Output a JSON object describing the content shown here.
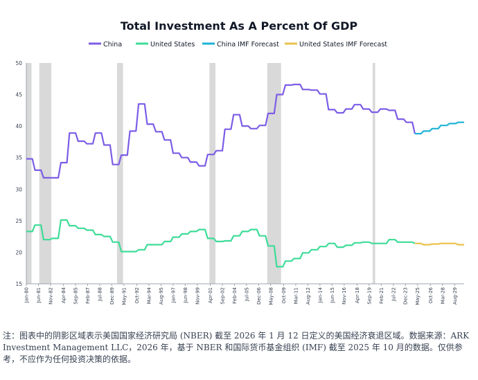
{
  "chart_data": {
    "type": "line",
    "title": "Total Investment As A Percent Of GDP",
    "xlabel": "",
    "ylabel": "",
    "ylim": [
      15,
      50
    ],
    "yticks": [
      15,
      20,
      25,
      30,
      35,
      40,
      45,
      50
    ],
    "xlim": [
      1980,
      2030.7
    ],
    "xticks": [
      {
        "label": "Jan-80",
        "x": 1980.0
      },
      {
        "label": "Jun-81",
        "x": 1981.4
      },
      {
        "label": "Nov-82",
        "x": 1982.8
      },
      {
        "label": "Apr-84",
        "x": 1984.3
      },
      {
        "label": "Sep-85",
        "x": 1985.7
      },
      {
        "label": "Feb-87",
        "x": 1987.1
      },
      {
        "label": "Jul-88",
        "x": 1988.5
      },
      {
        "label": "Dec-89",
        "x": 1989.9
      },
      {
        "label": "May-91",
        "x": 1991.3
      },
      {
        "label": "Oct-92",
        "x": 1992.8
      },
      {
        "label": "Mar-94",
        "x": 1994.2
      },
      {
        "label": "Aug-95",
        "x": 1995.6
      },
      {
        "label": "Jan-97",
        "x": 1997.0
      },
      {
        "label": "Jun-98",
        "x": 1998.4
      },
      {
        "label": "Nov-99",
        "x": 1999.8
      },
      {
        "label": "Apr-01",
        "x": 2001.3
      },
      {
        "label": "Sep-02",
        "x": 2002.7
      },
      {
        "label": "Feb-04",
        "x": 2004.1
      },
      {
        "label": "Jul-05",
        "x": 2005.5
      },
      {
        "label": "Dec-06",
        "x": 2006.9
      },
      {
        "label": "May-08",
        "x": 2008.3
      },
      {
        "label": "Oct-09",
        "x": 2009.8
      },
      {
        "label": "Mar-11",
        "x": 2011.2
      },
      {
        "label": "Aug-12",
        "x": 2012.6
      },
      {
        "label": "Jan-14",
        "x": 2014.0
      },
      {
        "label": "Jun-15",
        "x": 2015.4
      },
      {
        "label": "Nov-16",
        "x": 2016.8
      },
      {
        "label": "Apr-18",
        "x": 2018.3
      },
      {
        "label": "Sep-19",
        "x": 2019.7
      },
      {
        "label": "Feb-21",
        "x": 2021.1
      },
      {
        "label": "Jul-22",
        "x": 2022.5
      },
      {
        "label": "Dec-23",
        "x": 2023.9
      },
      {
        "label": "May-25",
        "x": 2025.3
      },
      {
        "label": "Oct-26",
        "x": 2026.8
      },
      {
        "label": "Mar-28",
        "x": 2028.2
      },
      {
        "label": "Aug-29",
        "x": 2029.6
      }
    ],
    "grid": false,
    "legend": "top",
    "recessions": [
      [
        1980.0,
        1980.6
      ],
      [
        1981.5,
        1982.9
      ],
      [
        1990.5,
        1991.2
      ],
      [
        2001.2,
        2001.9
      ],
      [
        2007.9,
        2009.5
      ],
      [
        2020.1,
        2020.4
      ]
    ],
    "series": [
      {
        "name": "China",
        "color": "#7c5ce6",
        "points": [
          [
            1980,
            34.8
          ],
          [
            1981,
            33.0
          ],
          [
            1982,
            31.8
          ],
          [
            1983,
            31.8
          ],
          [
            1984,
            34.2
          ],
          [
            1985,
            38.9
          ],
          [
            1986,
            37.6
          ],
          [
            1987,
            37.2
          ],
          [
            1988,
            38.9
          ],
          [
            1989,
            37.0
          ],
          [
            1990,
            33.9
          ],
          [
            1991,
            35.4
          ],
          [
            1992,
            39.2
          ],
          [
            1993,
            43.5
          ],
          [
            1994,
            40.3
          ],
          [
            1995,
            39.1
          ],
          [
            1996,
            37.8
          ],
          [
            1997,
            35.7
          ],
          [
            1998,
            35.0
          ],
          [
            1999,
            34.3
          ],
          [
            2000,
            33.7
          ],
          [
            2001,
            35.5
          ],
          [
            2002,
            36.1
          ],
          [
            2003,
            39.5
          ],
          [
            2004,
            41.8
          ],
          [
            2005,
            40.0
          ],
          [
            2006,
            39.6
          ],
          [
            2007,
            40.1
          ],
          [
            2008,
            42.0
          ],
          [
            2009,
            45.0
          ],
          [
            2010,
            46.5
          ],
          [
            2011,
            46.6
          ],
          [
            2012,
            45.8
          ],
          [
            2013,
            45.7
          ],
          [
            2014,
            45.1
          ],
          [
            2015,
            42.6
          ],
          [
            2016,
            42.1
          ],
          [
            2017,
            42.7
          ],
          [
            2018,
            43.4
          ],
          [
            2019,
            42.7
          ],
          [
            2020,
            42.2
          ],
          [
            2021,
            42.7
          ],
          [
            2022,
            42.5
          ],
          [
            2023,
            41.1
          ],
          [
            2024,
            40.6
          ],
          [
            2025,
            38.8
          ]
        ]
      },
      {
        "name": "United States",
        "color": "#3ddc97",
        "points": [
          [
            1980,
            23.3
          ],
          [
            1981,
            24.3
          ],
          [
            1982,
            22.0
          ],
          [
            1983,
            22.2
          ],
          [
            1984,
            25.1
          ],
          [
            1985,
            24.2
          ],
          [
            1986,
            23.8
          ],
          [
            1987,
            23.5
          ],
          [
            1988,
            22.8
          ],
          [
            1989,
            22.5
          ],
          [
            1990,
            21.6
          ],
          [
            1991,
            20.1
          ],
          [
            1992,
            20.1
          ],
          [
            1993,
            20.4
          ],
          [
            1994,
            21.2
          ],
          [
            1995,
            21.2
          ],
          [
            1996,
            21.7
          ],
          [
            1997,
            22.4
          ],
          [
            1998,
            22.9
          ],
          [
            1999,
            23.3
          ],
          [
            2000,
            23.6
          ],
          [
            2001,
            22.2
          ],
          [
            2002,
            21.7
          ],
          [
            2003,
            21.8
          ],
          [
            2004,
            22.6
          ],
          [
            2005,
            23.3
          ],
          [
            2006,
            23.6
          ],
          [
            2007,
            22.6
          ],
          [
            2008,
            21.0
          ],
          [
            2009,
            17.7
          ],
          [
            2010,
            18.6
          ],
          [
            2011,
            19.0
          ],
          [
            2012,
            19.9
          ],
          [
            2013,
            20.4
          ],
          [
            2014,
            20.9
          ],
          [
            2015,
            21.4
          ],
          [
            2016,
            20.8
          ],
          [
            2017,
            21.1
          ],
          [
            2018,
            21.5
          ],
          [
            2019,
            21.6
          ],
          [
            2020,
            21.4
          ],
          [
            2021,
            21.4
          ],
          [
            2022,
            22.0
          ],
          [
            2023,
            21.6
          ],
          [
            2024,
            21.6
          ],
          [
            2025,
            21.4
          ]
        ]
      },
      {
        "name": "China IMF Forecast",
        "color": "#1cb3d6",
        "points": [
          [
            2025,
            38.8
          ],
          [
            2026,
            39.2
          ],
          [
            2027,
            39.6
          ],
          [
            2028,
            40.1
          ],
          [
            2029,
            40.4
          ],
          [
            2030,
            40.6
          ],
          [
            2030.7,
            40.6
          ]
        ]
      },
      {
        "name": "United States IMF Forecast",
        "color": "#e9c24a",
        "points": [
          [
            2025,
            21.4
          ],
          [
            2026,
            21.2
          ],
          [
            2027,
            21.3
          ],
          [
            2028,
            21.4
          ],
          [
            2029,
            21.4
          ],
          [
            2030,
            21.2
          ],
          [
            2030.7,
            21.2
          ]
        ]
      }
    ]
  },
  "footnote": "注：图表中的阴影区域表示美国国家经济研究局 (NBER) 截至 2026 年 1 月 12 日定义的美国经济衰退区域。数据来源：ARK Investment Management LLC，2026 年，基于 NBER 和国际货币基金组织 (IMF) 截至 2025 年 10 月的数据。仅供参考，不应作为任何投资决策的依据。"
}
